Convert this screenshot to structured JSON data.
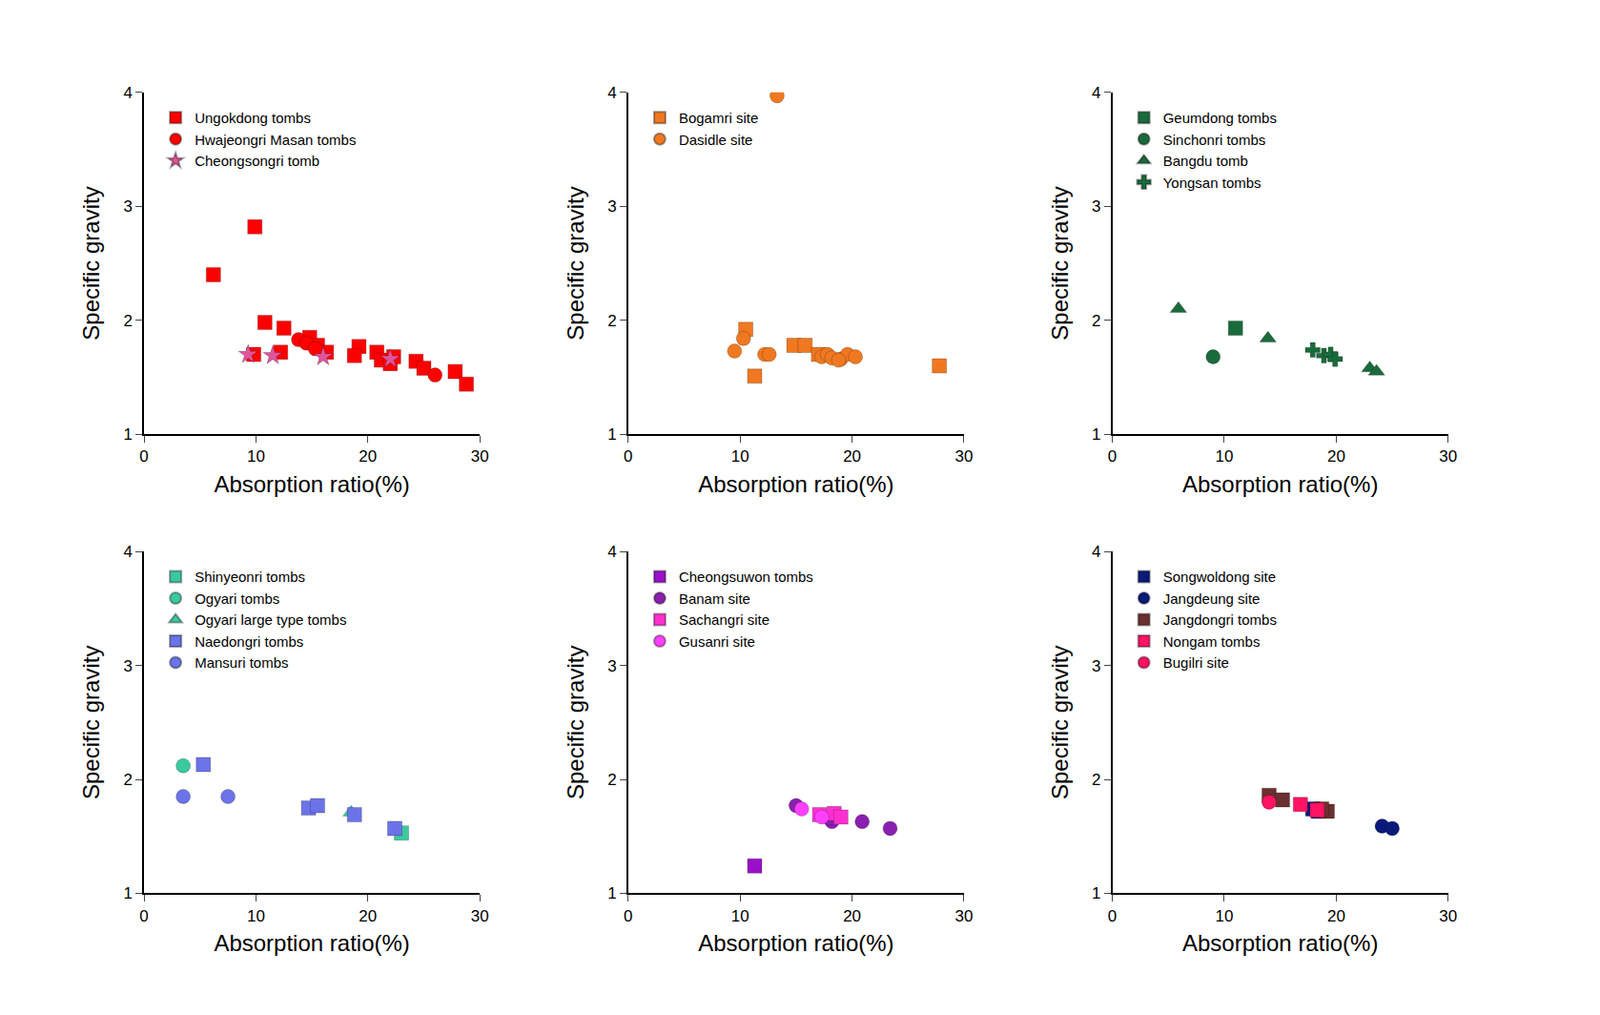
{
  "chart_data": [
    {
      "type": "scatter",
      "xlabel": "Absorption ratio(%)",
      "ylabel": "Specific gravity",
      "xlim": [
        0,
        30
      ],
      "xticks": [
        0,
        10,
        20,
        30
      ],
      "ylim": [
        1,
        4
      ],
      "yticks": [
        1,
        2,
        3,
        4
      ],
      "legend": "upper left",
      "series": [
        {
          "name": "Ungokdong tombs",
          "color": "#ff0000",
          "marker": "square",
          "x": [
            6.2,
            9.9,
            10.8,
            12.5,
            12.2,
            9.8,
            14.8,
            15.5,
            16.3,
            19.2,
            18.8,
            20.8,
            21.2,
            22.0,
            22.3,
            24.3,
            25.0,
            27.8,
            28.8
          ],
          "values": [
            2.4,
            2.82,
            1.98,
            1.93,
            1.72,
            1.7,
            1.85,
            1.78,
            1.72,
            1.77,
            1.69,
            1.72,
            1.65,
            1.62,
            1.68,
            1.64,
            1.58,
            1.55,
            1.44
          ]
        },
        {
          "name": "Hwajeongri Masan tombs",
          "color": "#ff0000",
          "marker": "circle",
          "x": [
            13.8,
            14.5,
            15.3,
            26.0
          ],
          "values": [
            1.83,
            1.8,
            1.75,
            1.52
          ]
        },
        {
          "name": "Cheongsongri tomb",
          "color": "#e0559a",
          "marker": "star",
          "x": [
            9.3,
            11.5,
            16.0,
            22.0
          ],
          "values": [
            1.7,
            1.69,
            1.68,
            1.66
          ]
        }
      ]
    },
    {
      "type": "scatter",
      "xlabel": "Absorption ratio(%)",
      "ylabel": "Specific gravity",
      "xlim": [
        0,
        30
      ],
      "xticks": [
        0,
        10,
        20,
        30
      ],
      "ylim": [
        1,
        4
      ],
      "yticks": [
        1,
        2,
        3,
        4
      ],
      "legend": "upper left",
      "series": [
        {
          "name": "Bogamri site",
          "color": "#f07820",
          "marker": "square",
          "x": [
            10.5,
            11.3,
            14.8,
            15.8,
            27.8,
            17.0
          ],
          "values": [
            1.92,
            1.51,
            1.78,
            1.78,
            1.6,
            1.7
          ]
        },
        {
          "name": "Dasidle site",
          "color": "#f07820",
          "marker": "circle",
          "x": [
            13.3,
            9.5,
            10.3,
            12.2,
            12.6,
            17.3,
            17.8,
            18.2,
            19.0,
            19.6,
            20.3,
            18.8
          ],
          "values": [
            3.97,
            1.73,
            1.84,
            1.7,
            1.7,
            1.68,
            1.7,
            1.67,
            1.66,
            1.7,
            1.68,
            1.65
          ]
        }
      ]
    },
    {
      "type": "scatter",
      "xlabel": "Absorption ratio(%)",
      "ylabel": "Specific gravity",
      "xlim": [
        0,
        30
      ],
      "xticks": [
        0,
        10,
        20,
        30
      ],
      "ylim": [
        1,
        4
      ],
      "yticks": [
        1,
        2,
        3,
        4
      ],
      "legend": "upper left",
      "series": [
        {
          "name": "Geumdong tombs",
          "color": "#1a6b3c",
          "marker": "square",
          "x": [
            11.0
          ],
          "values": [
            1.93
          ]
        },
        {
          "name": "Sinchonri tombs",
          "color": "#1a6b3c",
          "marker": "circle",
          "x": [
            9.0
          ],
          "values": [
            1.68
          ]
        },
        {
          "name": "Bangdu tomb",
          "color": "#1a6b3c",
          "marker": "triangle",
          "x": [
            5.9,
            13.9,
            23.0,
            23.6
          ],
          "values": [
            2.1,
            1.84,
            1.58,
            1.55
          ]
        },
        {
          "name": "Yongsan tombs",
          "color": "#1a6b3c",
          "marker": "cross",
          "x": [
            17.9,
            18.9,
            19.5,
            19.9
          ],
          "values": [
            1.74,
            1.69,
            1.7,
            1.66
          ]
        }
      ]
    },
    {
      "type": "scatter",
      "xlabel": "Absorption ratio(%)",
      "ylabel": "Specific gravity",
      "xlim": [
        0,
        30
      ],
      "xticks": [
        0,
        10,
        20,
        30
      ],
      "ylim": [
        1,
        4
      ],
      "yticks": [
        1,
        2,
        3,
        4
      ],
      "legend": "upper left",
      "series": [
        {
          "name": "Shinyeonri tombs",
          "color": "#3cc8a0",
          "marker": "square",
          "x": [
            23.0
          ],
          "values": [
            1.53
          ]
        },
        {
          "name": "Ogyari tombs",
          "color": "#3cc8a0",
          "marker": "circle",
          "x": [
            3.5
          ],
          "values": [
            2.12
          ]
        },
        {
          "name": "Ogyari large type tombs",
          "color": "#3cc8a0",
          "marker": "triangle",
          "x": [
            18.5
          ],
          "values": [
            1.71
          ]
        },
        {
          "name": "Naedongri tombs",
          "color": "#6b73e8",
          "marker": "square",
          "x": [
            5.3,
            14.7,
            15.5,
            18.8,
            22.4
          ],
          "values": [
            2.13,
            1.75,
            1.77,
            1.69,
            1.57
          ]
        },
        {
          "name": "Mansuri tombs",
          "color": "#6b73e8",
          "marker": "circle",
          "x": [
            3.5,
            7.5
          ],
          "values": [
            1.85,
            1.85
          ]
        }
      ]
    },
    {
      "type": "scatter",
      "xlabel": "Absorption ratio(%)",
      "ylabel": "Specific gravity",
      "xlim": [
        0,
        30
      ],
      "xticks": [
        0,
        10,
        20,
        30
      ],
      "ylim": [
        1,
        4
      ],
      "yticks": [
        1,
        2,
        3,
        4
      ],
      "legend": "upper left",
      "series": [
        {
          "name": "Cheongsuwon tombs",
          "color": "#9a10c8",
          "marker": "square",
          "x": [
            11.3
          ],
          "values": [
            1.24
          ]
        },
        {
          "name": "Banam site",
          "color": "#8a20b0",
          "marker": "circle",
          "x": [
            15.0,
            18.2,
            20.9,
            23.4,
            18.0
          ],
          "values": [
            1.77,
            1.63,
            1.63,
            1.57,
            1.66
          ]
        },
        {
          "name": "Sachangri site",
          "color": "#ff30d0",
          "marker": "square",
          "x": [
            17.1,
            18.4,
            19.0
          ],
          "values": [
            1.69,
            1.7,
            1.67
          ]
        },
        {
          "name": "Gusanri site",
          "color": "#ff40ff",
          "marker": "circle",
          "x": [
            15.5,
            17.3
          ],
          "values": [
            1.74,
            1.67
          ]
        }
      ]
    },
    {
      "type": "scatter",
      "xlabel": "Absorption ratio(%)",
      "ylabel": "Specific gravity",
      "xlim": [
        0,
        30
      ],
      "xticks": [
        0,
        10,
        20,
        30
      ],
      "ylim": [
        1,
        4
      ],
      "yticks": [
        1,
        2,
        3,
        4
      ],
      "legend": "upper left",
      "series": [
        {
          "name": "Songwoldong site",
          "color": "#0a1a7a",
          "marker": "square",
          "x": [
            17.9,
            18.4
          ],
          "values": [
            1.74,
            1.72
          ]
        },
        {
          "name": "Jangdeung site",
          "color": "#0a1a7a",
          "marker": "circle",
          "x": [
            24.1,
            25.0
          ],
          "values": [
            1.59,
            1.57
          ]
        },
        {
          "name": "Jangdongri tombs",
          "color": "#6b3030",
          "marker": "square",
          "x": [
            14.0,
            15.2,
            19.2,
            18.7
          ],
          "values": [
            1.86,
            1.82,
            1.72,
            1.74
          ]
        },
        {
          "name": "Nongam tombs",
          "color": "#ff1464",
          "marker": "square",
          "x": [
            16.8,
            18.3
          ],
          "values": [
            1.78,
            1.73
          ]
        },
        {
          "name": "Bugilri site",
          "color": "#ff1464",
          "marker": "circle",
          "x": [
            14.0
          ],
          "values": [
            1.8
          ]
        }
      ]
    }
  ]
}
